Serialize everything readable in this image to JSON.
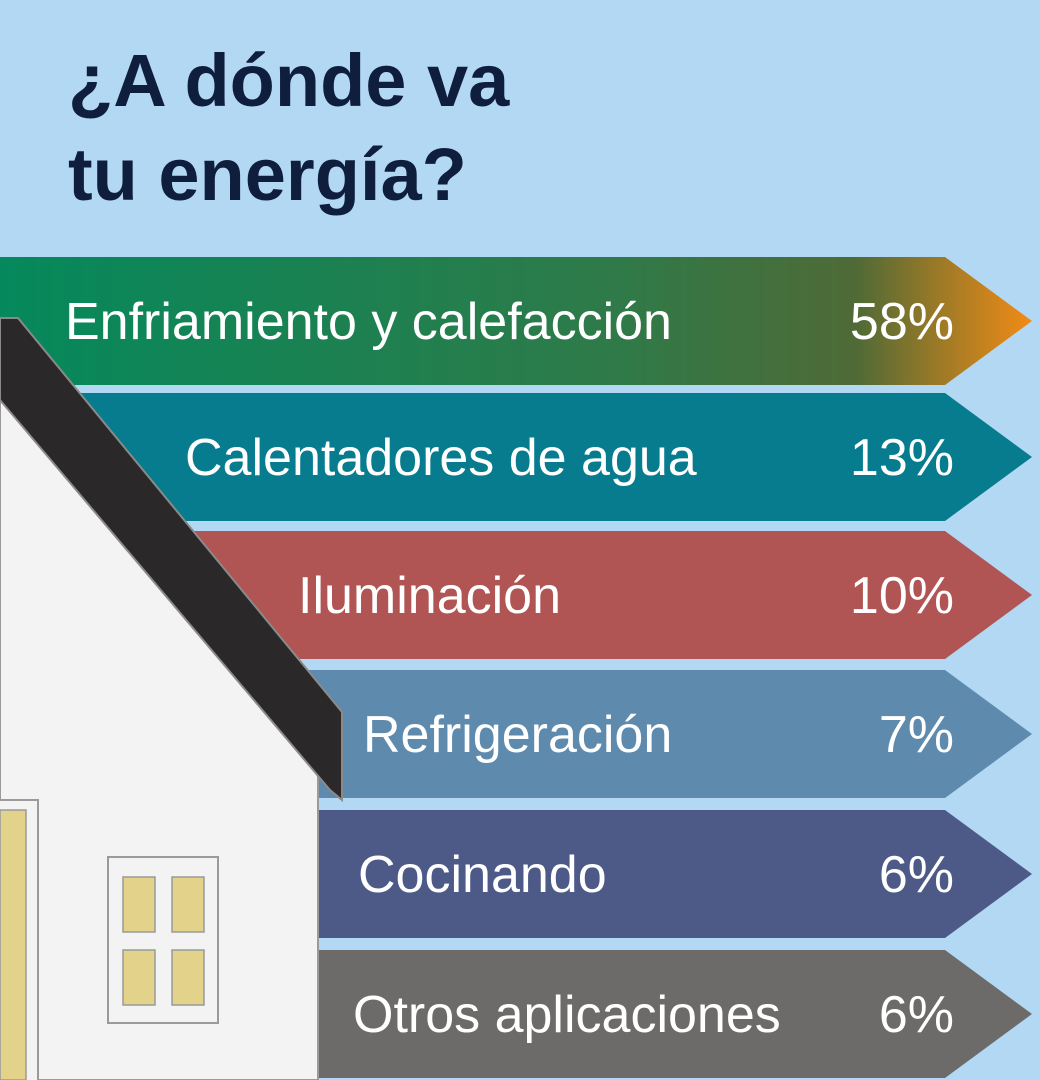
{
  "title_lines": [
    "¿A dónde va",
    "tu energía?"
  ],
  "items": [
    {
      "label": "Enfriamiento y calefacción",
      "value": "58%"
    },
    {
      "label": "Calentadores de agua",
      "value": "13%"
    },
    {
      "label": "Iluminación",
      "value": "10%"
    },
    {
      "label": "Refrigeración",
      "value": "7%"
    },
    {
      "label": "Cocinando",
      "value": "6%"
    },
    {
      "label": "Otros aplicaciones",
      "value": "6%"
    }
  ]
}
